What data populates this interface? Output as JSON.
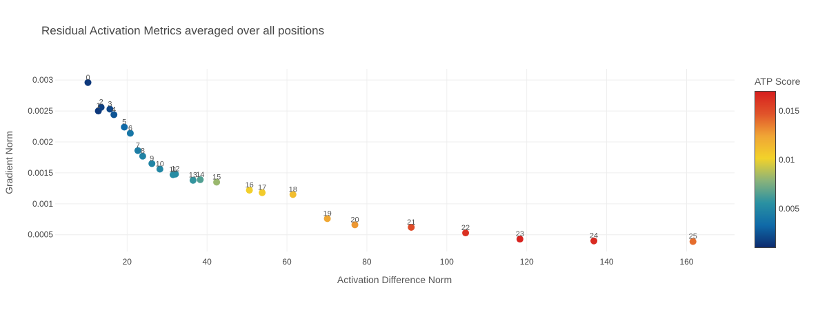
{
  "chart_data": {
    "type": "scatter",
    "title": "Residual Activation Metrics averaged over all positions",
    "xlabel": "Activation Difference Norm",
    "ylabel": "Gradient Norm",
    "xlim": [
      2,
      172
    ],
    "ylim": [
      0.00023,
      0.00318
    ],
    "x_ticks": [
      20,
      40,
      60,
      80,
      100,
      120,
      140,
      160
    ],
    "y_ticks": [
      0.0005,
      0.001,
      0.0015,
      0.002,
      0.0025,
      0.003
    ],
    "y_tick_labels": [
      "0.0005",
      "0.001",
      "0.0015",
      "0.002",
      "0.0025",
      "0.003"
    ],
    "grid": true,
    "colorbar": {
      "title": "ATP Score",
      "min": 0.001,
      "max": 0.017,
      "ticks": [
        0.005,
        0.01,
        0.015
      ],
      "tick_labels": [
        "0.005",
        "0.01",
        "0.015"
      ],
      "colorscale": [
        "#0d2a6e",
        "#0f6aa8",
        "#2a91a2",
        "#8ab37a",
        "#f2d22a",
        "#f0a535",
        "#e0532a",
        "#d71e1e"
      ]
    },
    "points": [
      {
        "label": "0",
        "x": 10.2,
        "y": 0.00296,
        "score": 0.0015
      },
      {
        "label": "1",
        "x": 12.8,
        "y": 0.0025,
        "score": 0.0015
      },
      {
        "label": "2",
        "x": 13.5,
        "y": 0.00256,
        "score": 0.0018
      },
      {
        "label": "3",
        "x": 15.7,
        "y": 0.00253,
        "score": 0.002
      },
      {
        "label": "4",
        "x": 16.7,
        "y": 0.00244,
        "score": 0.0025
      },
      {
        "label": "5",
        "x": 19.3,
        "y": 0.00224,
        "score": 0.0033
      },
      {
        "label": "6",
        "x": 20.8,
        "y": 0.00214,
        "score": 0.004
      },
      {
        "label": "7",
        "x": 22.7,
        "y": 0.00186,
        "score": 0.0044
      },
      {
        "label": "8",
        "x": 23.9,
        "y": 0.00177,
        "score": 0.0047
      },
      {
        "label": "9",
        "x": 26.2,
        "y": 0.00165,
        "score": 0.0048
      },
      {
        "label": "10",
        "x": 28.2,
        "y": 0.00156,
        "score": 0.005
      },
      {
        "label": "11",
        "x": 31.5,
        "y": 0.00147,
        "score": 0.0053
      },
      {
        "label": "12",
        "x": 32.1,
        "y": 0.00148,
        "score": 0.0053
      },
      {
        "label": "13",
        "x": 36.5,
        "y": 0.00138,
        "score": 0.0058
      },
      {
        "label": "14",
        "x": 38.3,
        "y": 0.00139,
        "score": 0.0065
      },
      {
        "label": "15",
        "x": 42.4,
        "y": 0.00135,
        "score": 0.0082
      },
      {
        "label": "16",
        "x": 50.6,
        "y": 0.00122,
        "score": 0.0103
      },
      {
        "label": "17",
        "x": 53.8,
        "y": 0.00118,
        "score": 0.0105
      },
      {
        "label": "18",
        "x": 61.5,
        "y": 0.00115,
        "score": 0.0112
      },
      {
        "label": "19",
        "x": 70.1,
        "y": 0.00076,
        "score": 0.0123
      },
      {
        "label": "20",
        "x": 77.0,
        "y": 0.00066,
        "score": 0.0128
      },
      {
        "label": "21",
        "x": 91.1,
        "y": 0.00062,
        "score": 0.015
      },
      {
        "label": "22",
        "x": 104.7,
        "y": 0.00053,
        "score": 0.0162
      },
      {
        "label": "23",
        "x": 118.3,
        "y": 0.00043,
        "score": 0.0168
      },
      {
        "label": "24",
        "x": 136.8,
        "y": 0.0004,
        "score": 0.0165
      },
      {
        "label": "25",
        "x": 161.6,
        "y": 0.00039,
        "score": 0.014
      }
    ]
  }
}
